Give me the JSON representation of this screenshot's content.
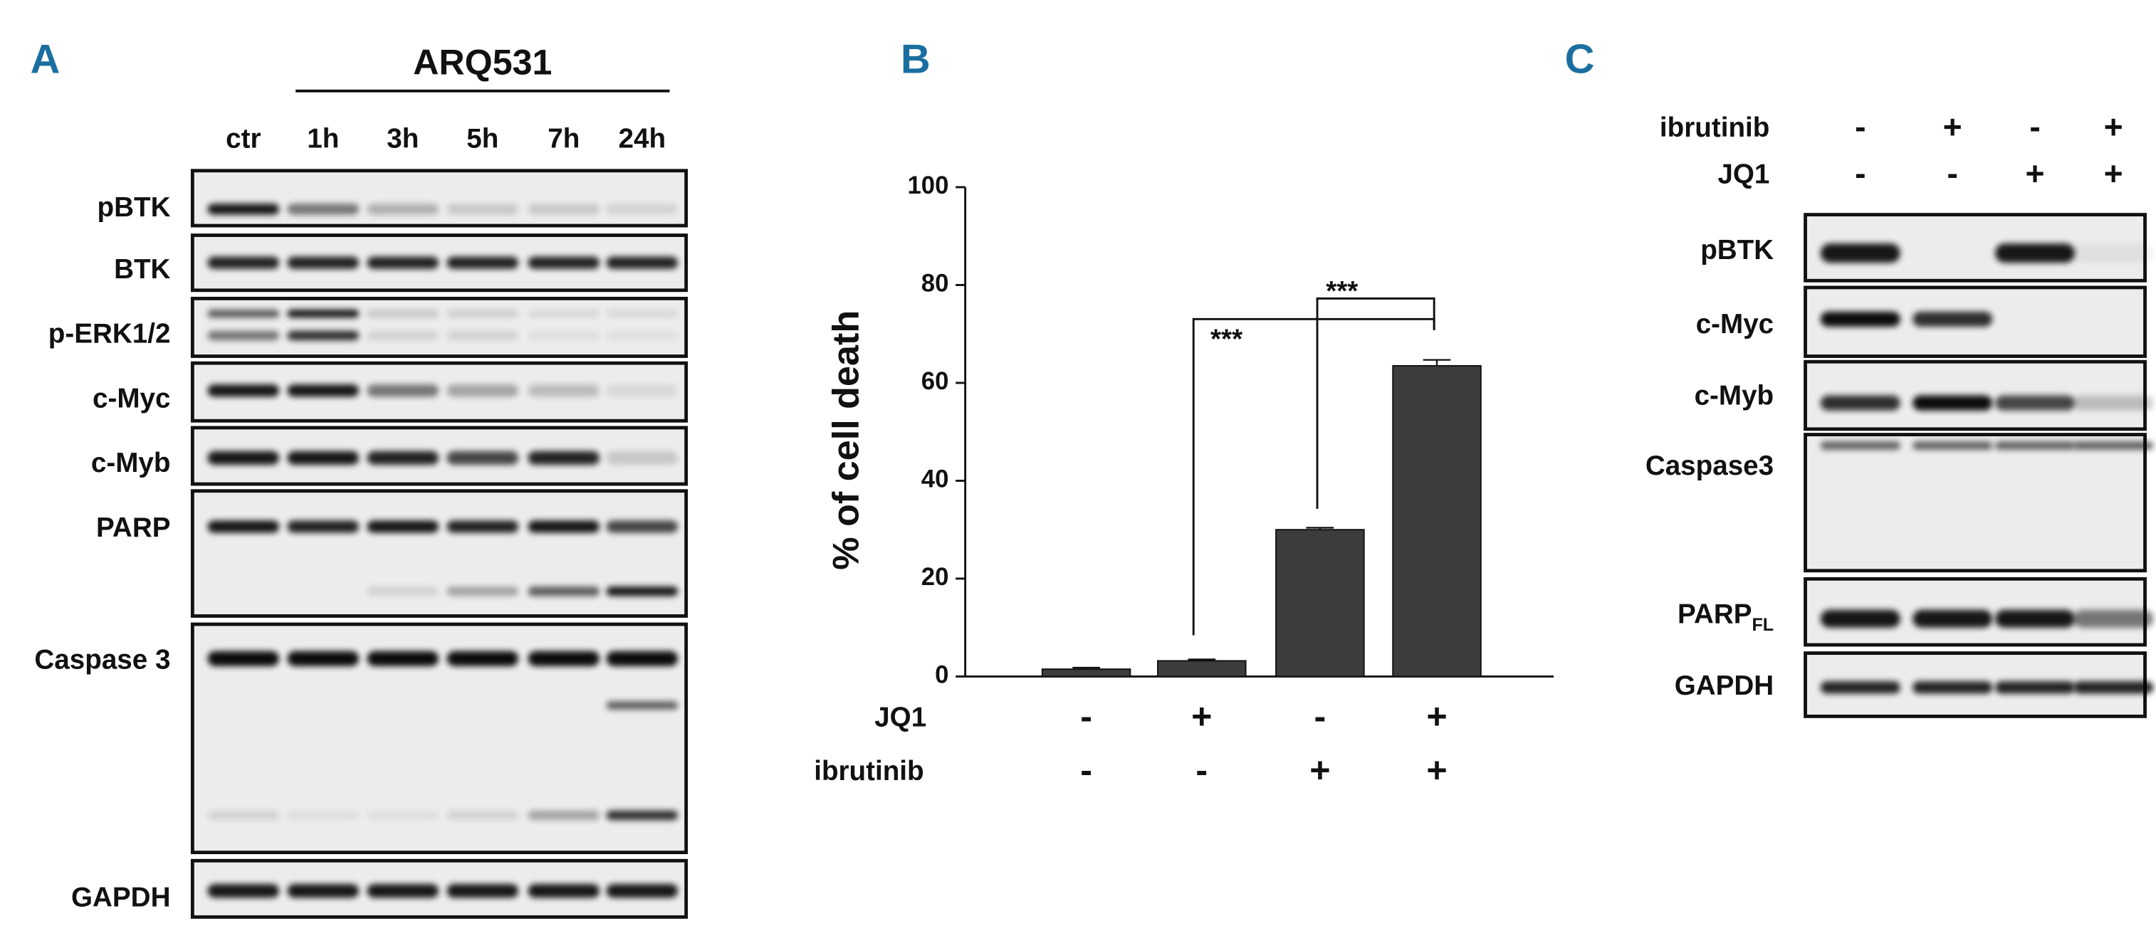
{
  "panel_a": {
    "letter": "A",
    "treatment": "ARQ531",
    "lanes": [
      "ctr",
      "1h",
      "3h",
      "5h",
      "7h",
      "24h"
    ],
    "rows": [
      "pBTK",
      "BTK",
      "p-ERK1/2",
      "c-Myc",
      "c-Myb",
      "PARP",
      "Caspase 3",
      "GAPDH"
    ]
  },
  "chart_data": {
    "type": "bar",
    "panel_label": "B",
    "y_label": "% of cell death",
    "values": [
      1.5,
      3.2,
      30,
      63.5
    ],
    "errors": [
      0.3,
      0.3,
      0.4,
      1.2
    ],
    "color": "#3c3c3c",
    "ylim": [
      0,
      100
    ],
    "yticks": [
      0,
      20,
      40,
      60,
      80,
      100
    ],
    "conditions": [
      {
        "name": "JQ1",
        "values": [
          "-",
          "+",
          "-",
          "+"
        ]
      },
      {
        "name": "ibrutinib",
        "values": [
          "-",
          "-",
          "+",
          "+"
        ]
      }
    ],
    "significance": [
      "***",
      "***"
    ]
  },
  "panel_c": {
    "letter": "C",
    "conditions": [
      {
        "name": "ibrutinib",
        "values": [
          "-",
          "+",
          "-",
          "+"
        ]
      },
      {
        "name": "JQ1",
        "values": [
          "-",
          "-",
          "+",
          "+"
        ]
      }
    ],
    "rows": [
      {
        "label": "pBTK"
      },
      {
        "label": "c-Myc"
      },
      {
        "label": "c-Myb"
      },
      {
        "label": "Caspase3"
      },
      {
        "label": "PARP",
        "subscript": "FL"
      },
      {
        "label": "GAPDH"
      }
    ]
  }
}
